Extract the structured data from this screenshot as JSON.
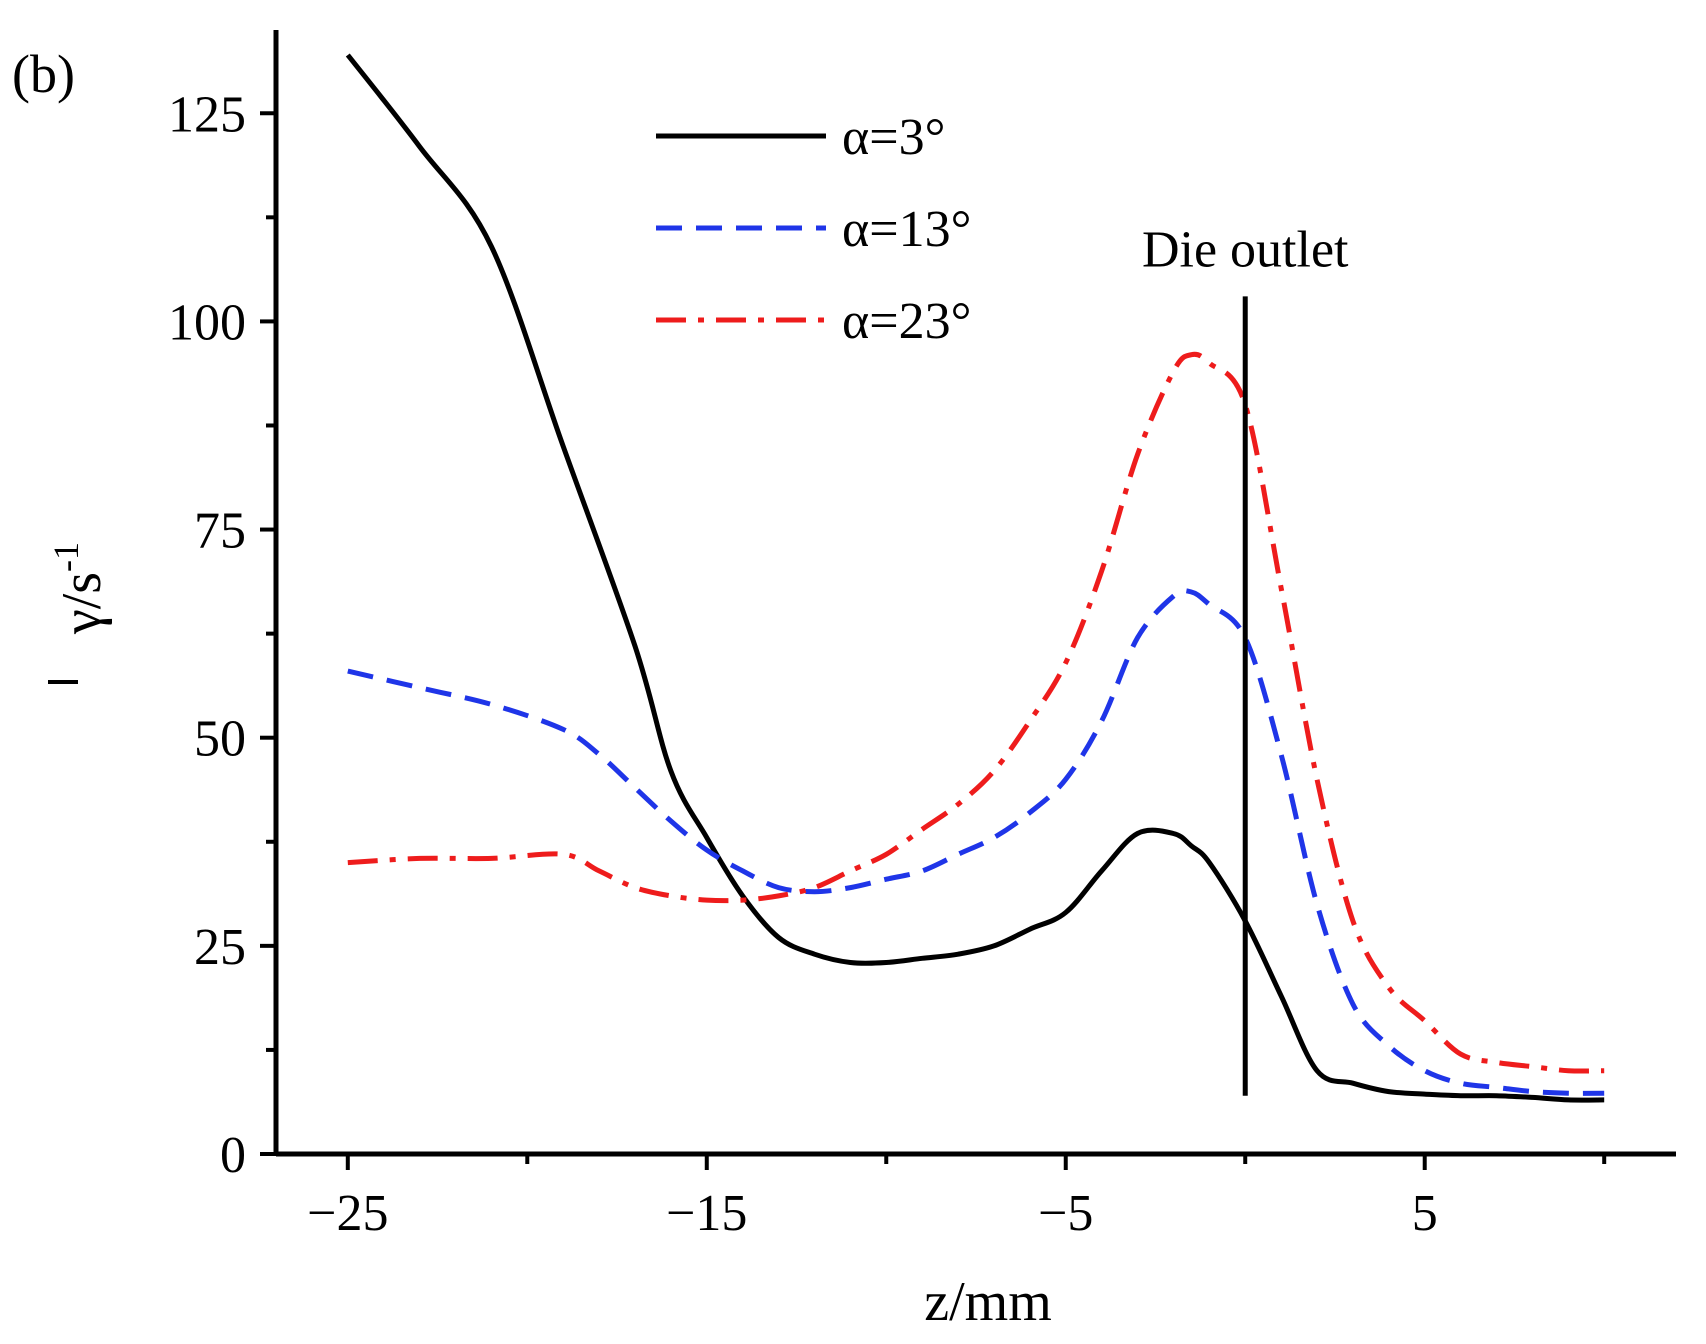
{
  "chart_data": {
    "type": "line",
    "panel_label": "(b)",
    "xlabel": "z/mm",
    "ylabel": "/s",
    "ylabel_symbol": "γ",
    "ylabel_exponent": "-1",
    "xlim": [
      -27,
      12
    ],
    "ylim": [
      0,
      135
    ],
    "xticks": [
      -25,
      -15,
      -5,
      5
    ],
    "xtick_labels": [
      "−25",
      "−15",
      "−5",
      "5"
    ],
    "xminor": [
      -20,
      -10,
      0,
      10
    ],
    "yticks": [
      0,
      25,
      50,
      75,
      100,
      125
    ],
    "ytick_labels": [
      "0",
      "25",
      "50",
      "75",
      "100",
      "125"
    ],
    "yminor": [
      12.5,
      37.5,
      62.5,
      87.5,
      112.5
    ],
    "grid": false,
    "legend_position": "top-center",
    "annotation": {
      "text": "Die outlet",
      "x": 0,
      "y_top": 103,
      "y_bottom": 7
    },
    "series": [
      {
        "name": "α=3°",
        "color": "#000000",
        "dash": "solid",
        "x": [
          -25,
          -23,
          -21,
          -19,
          -17,
          -16,
          -15,
          -14,
          -13,
          -12,
          -11,
          -10,
          -9,
          -8,
          -7,
          -6,
          -5,
          -4,
          -3,
          -2,
          -1.5,
          -1,
          0,
          1,
          2,
          3,
          4,
          5,
          6,
          7,
          8,
          9,
          10
        ],
        "y": [
          132,
          121,
          109,
          85,
          61,
          46,
          38,
          31,
          26,
          24,
          23,
          23,
          23.5,
          24,
          25,
          27,
          29,
          34,
          38.5,
          38.5,
          37,
          35,
          28,
          19,
          10,
          8.5,
          7.5,
          7.2,
          7,
          7,
          6.8,
          6.5,
          6.5
        ]
      },
      {
        "name": "α=13°",
        "color": "#1f35e8",
        "dash": "dashed",
        "x": [
          -25,
          -23,
          -21,
          -19,
          -18,
          -17,
          -16,
          -15,
          -14,
          -13,
          -12,
          -11,
          -10,
          -9,
          -8,
          -7,
          -6,
          -5,
          -4,
          -3,
          -2,
          -1.5,
          -1,
          0,
          1,
          2,
          3,
          4,
          5,
          6,
          7,
          8,
          9,
          10
        ],
        "y": [
          58,
          56,
          54,
          51,
          48,
          44,
          40,
          36.5,
          34,
          32,
          31.5,
          32,
          33,
          34,
          36,
          38,
          41,
          45,
          52,
          62,
          67,
          67.5,
          66,
          62,
          48,
          30,
          18,
          13,
          10,
          8.5,
          8,
          7.5,
          7.3,
          7.3
        ]
      },
      {
        "name": "α=23°",
        "color": "#ee1c1c",
        "dash": "dashdot",
        "x": [
          -25,
          -23,
          -21,
          -19,
          -18,
          -17,
          -16,
          -15,
          -14,
          -13,
          -12,
          -11,
          -10,
          -9,
          -8,
          -7,
          -6,
          -5,
          -4,
          -3,
          -2,
          -1.5,
          -1,
          0,
          1,
          2,
          3,
          4,
          5,
          6,
          7,
          8,
          9,
          10
        ],
        "y": [
          35,
          35.5,
          35.5,
          36,
          34,
          32,
          31,
          30.5,
          30.5,
          31,
          32,
          34,
          36,
          39,
          42,
          46,
          52,
          59,
          70,
          84,
          94,
          96,
          95,
          90,
          68,
          45,
          28,
          20,
          16,
          12,
          11,
          10.5,
          10,
          10
        ]
      }
    ]
  }
}
